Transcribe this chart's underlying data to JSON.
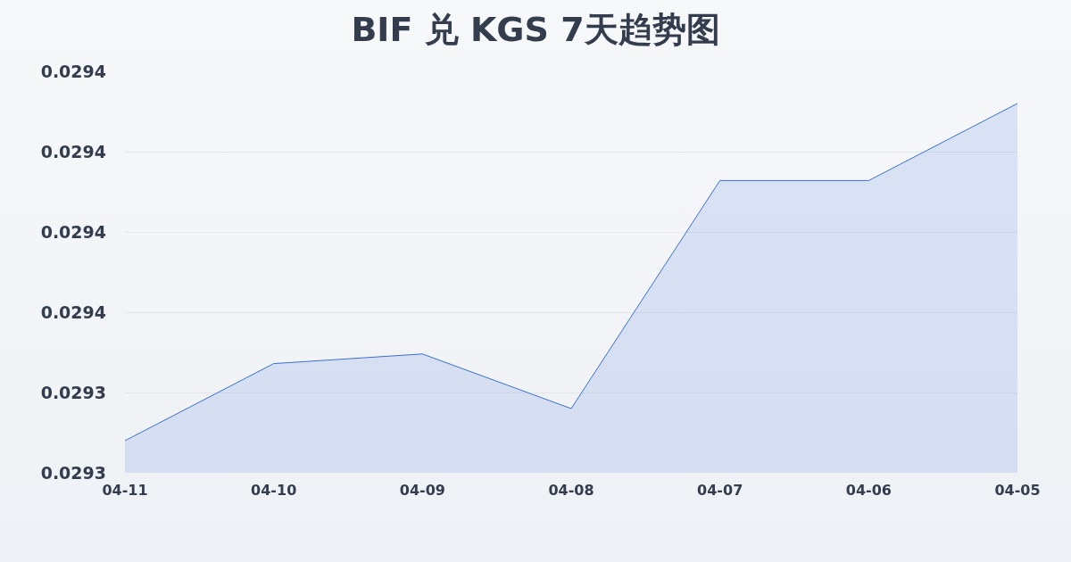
{
  "chart_data": {
    "type": "area",
    "title": "BIF 兑 KGS 7天趋势图",
    "categories": [
      "04-11",
      "04-10",
      "04-09",
      "04-08",
      "04-07",
      "04-06",
      "04-05"
    ],
    "series": [
      {
        "color": "#3b6fd4",
        "values": [
          0.02931,
          0.029334,
          0.029337,
          0.02932,
          0.029391,
          0.029391,
          0.029415
        ]
      }
    ],
    "ylim": [
      0.0293,
      0.029425
    ],
    "yticks": [
      {
        "value": 0.0293,
        "label": "0.0293"
      },
      {
        "value": 0.029325,
        "label": "0.0293"
      },
      {
        "value": 0.02935,
        "label": "0.0294"
      },
      {
        "value": 0.029375,
        "label": "0.0294"
      },
      {
        "value": 0.0294,
        "label": "0.0294"
      },
      {
        "value": 0.029425,
        "label": "0.0294"
      }
    ],
    "grid": "y",
    "marker": "none",
    "line_style": "solid"
  }
}
